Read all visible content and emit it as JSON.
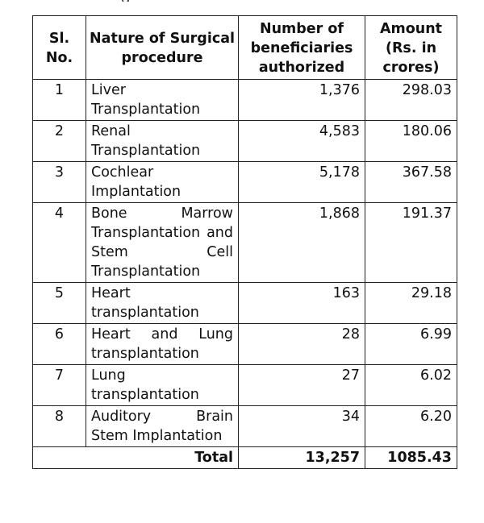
{
  "top_fragment": "g",
  "table": {
    "headers": {
      "sl_no": "Sl. No.",
      "procedure": "Nature of Surgical procedure",
      "beneficiaries": "Number of beneficiaries authorized",
      "amount": "Amount (Rs. in crores)"
    },
    "rows": [
      {
        "sl": "1",
        "procedure": "Liver Transplantation",
        "beneficiaries": "1,376",
        "amount": "298.03"
      },
      {
        "sl": "2",
        "procedure": "Renal Transplantation",
        "beneficiaries": "4,583",
        "amount": "180.06"
      },
      {
        "sl": "3",
        "procedure": "Cochlear Implantation",
        "beneficiaries": "5,178",
        "amount": "367.58"
      },
      {
        "sl": "4",
        "procedure": "Bone Marrow Transplantation and Stem Cell Transplantation",
        "beneficiaries": "1,868",
        "amount": "191.37"
      },
      {
        "sl": "5",
        "procedure": "Heart transplantation",
        "beneficiaries": "163",
        "amount": "29.18"
      },
      {
        "sl": "6",
        "procedure": "Heart and Lung transplantation",
        "beneficiaries": "28",
        "amount": "6.99"
      },
      {
        "sl": "7",
        "procedure": "Lung transplantation",
        "beneficiaries": "27",
        "amount": "6.02"
      },
      {
        "sl": "8",
        "procedure": "Auditory Brain Stem Implantation",
        "beneficiaries": "34",
        "amount": "6.20"
      }
    ],
    "total": {
      "label": "Total",
      "beneficiaries": "13,257",
      "amount": "1085.43"
    }
  }
}
